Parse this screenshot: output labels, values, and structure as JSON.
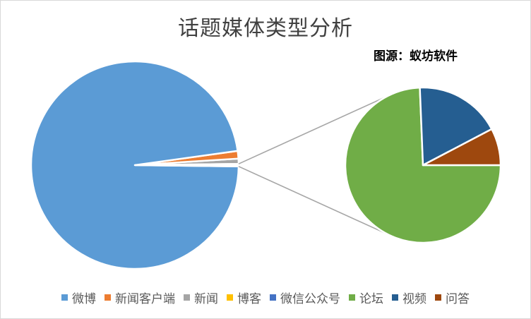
{
  "chart_data": {
    "type": "pie",
    "variant": "pie-of-pie",
    "title": "话题媒体类型分析",
    "source": "图源：蚁坊软件",
    "categories": [
      "微博",
      "新闻客户端",
      "新闻",
      "博客",
      "微信公众号",
      "论坛",
      "视频",
      "问答"
    ],
    "values": [
      97.6,
      1.2,
      0.8,
      0.0,
      0.0,
      0.29,
      0.07,
      0.03
    ],
    "colors": [
      "#5b9bd5",
      "#ed7d31",
      "#a5a5a5",
      "#ffc000",
      "#4472c4",
      "#70ad47",
      "#255e91",
      "#9e480e"
    ],
    "secondary_plot_categories": [
      "论坛",
      "视频",
      "问答"
    ],
    "legend_position": "bottom"
  }
}
